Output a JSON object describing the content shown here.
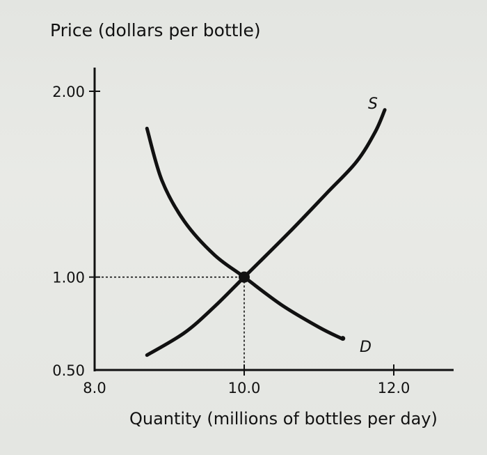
{
  "chart_data": {
    "type": "line",
    "title": "",
    "ylabel": "Price (dollars per bottle)",
    "xlabel": "Quantity (millions of bottles per day)",
    "xlim": [
      8.0,
      12.8
    ],
    "ylim": [
      0.5,
      2.1
    ],
    "x_ticks": [
      {
        "value": 8.0,
        "label": "8.0"
      },
      {
        "value": 10.0,
        "label": "10.0"
      },
      {
        "value": 12.0,
        "label": "12.0"
      }
    ],
    "y_ticks": [
      {
        "value": 0.5,
        "label": "0.50"
      },
      {
        "value": 1.0,
        "label": "1.00"
      },
      {
        "value": 2.0,
        "label": "2.00"
      }
    ],
    "grid": false,
    "series": [
      {
        "name": "S",
        "points": [
          [
            8.7,
            0.58
          ],
          [
            9.2,
            0.7
          ],
          [
            9.6,
            0.84
          ],
          [
            10.0,
            1.0
          ],
          [
            10.6,
            1.24
          ],
          [
            11.1,
            1.45
          ],
          [
            11.5,
            1.62
          ],
          [
            11.75,
            1.78
          ],
          [
            11.88,
            1.9
          ]
        ]
      },
      {
        "name": "D",
        "points": [
          [
            8.7,
            1.8
          ],
          [
            8.9,
            1.52
          ],
          [
            9.2,
            1.3
          ],
          [
            9.6,
            1.12
          ],
          [
            10.0,
            1.0
          ],
          [
            10.5,
            0.85
          ],
          [
            11.0,
            0.73
          ],
          [
            11.3,
            0.67
          ]
        ]
      }
    ],
    "equilibrium": {
      "x": 10.0,
      "y": 1.0
    }
  }
}
